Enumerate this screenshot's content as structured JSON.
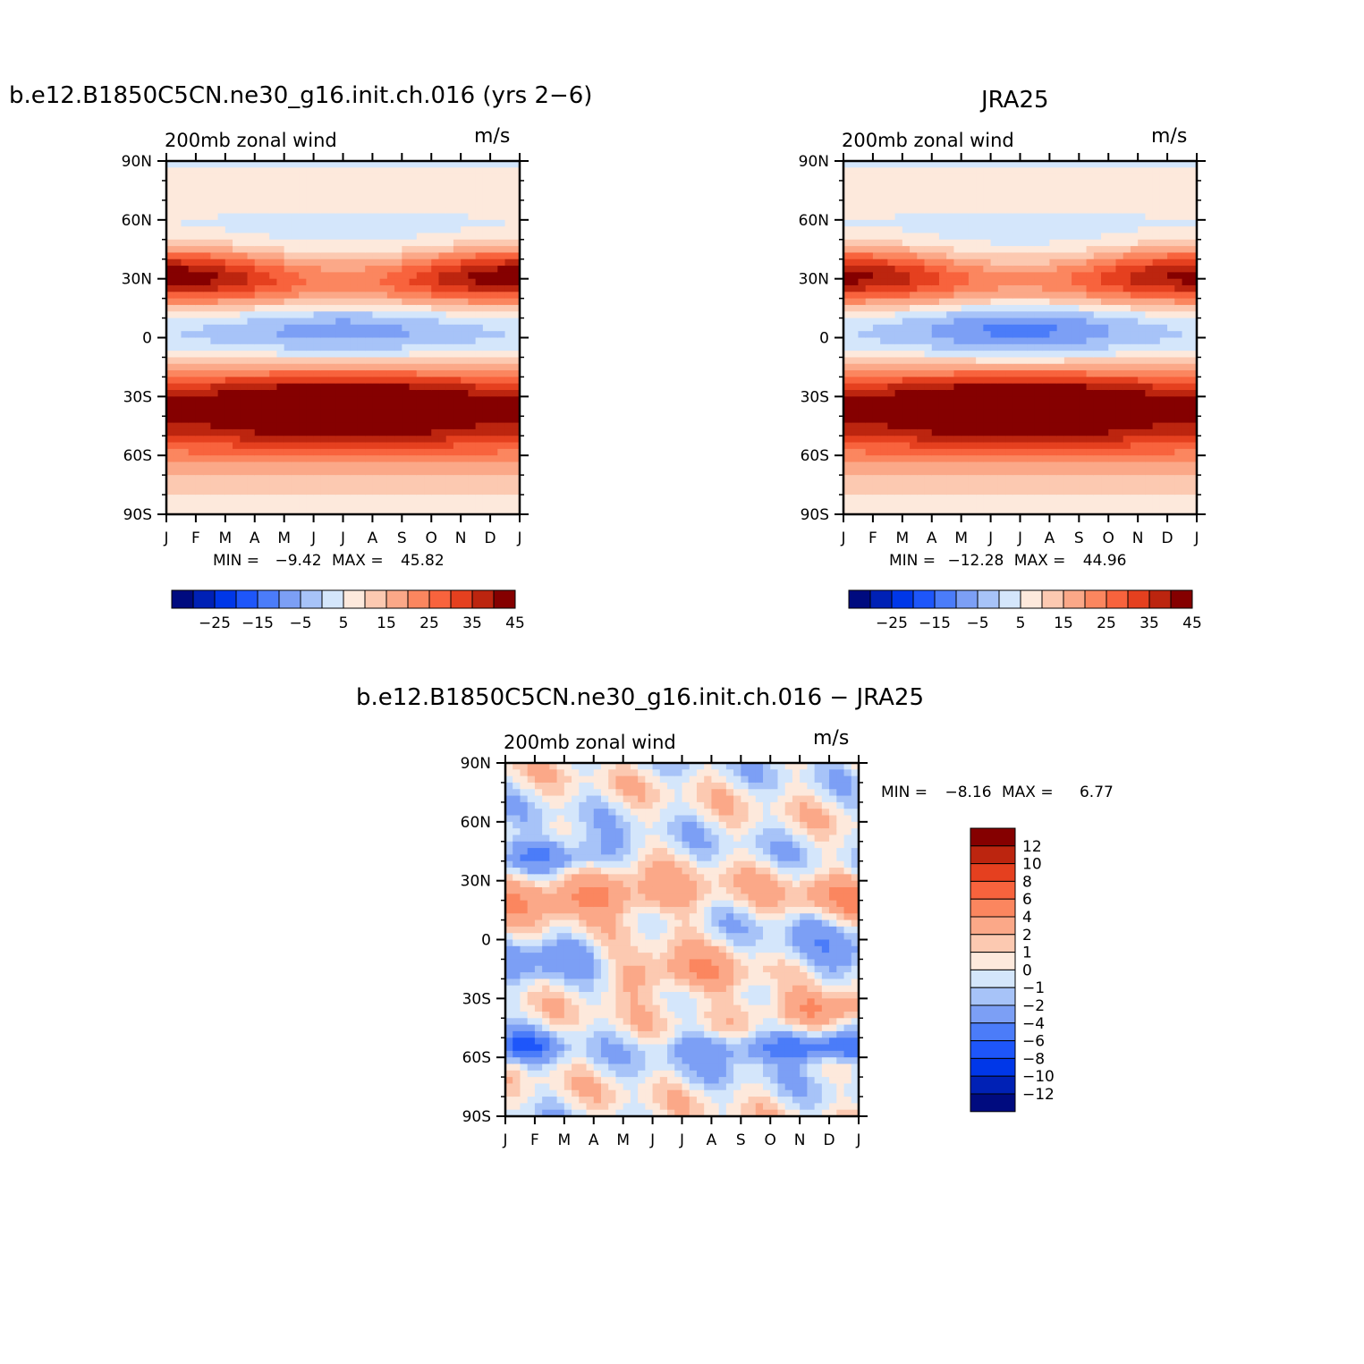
{
  "colors": {
    "seq_palette": [
      "#000b7f",
      "#0021b5",
      "#0037e8",
      "#1e56fa",
      "#4b7cf9",
      "#7c9ff5",
      "#a7c3f8",
      "#d4e6fb",
      "#fde9dc",
      "#fcc9b1",
      "#fba888",
      "#fb865f",
      "#f8633d",
      "#e5401f",
      "#bc250f",
      "#850000"
    ],
    "diff_palette": [
      "#000b7f",
      "#0021b5",
      "#0037e8",
      "#1e56fa",
      "#4b7cf9",
      "#7c9ff5",
      "#a7c3f8",
      "#d4e6fb",
      "#fde9dc",
      "#fcc9b1",
      "#fba888",
      "#fb865f",
      "#f8633d",
      "#e5401f",
      "#bc250f",
      "#850000"
    ]
  },
  "panels": {
    "model": {
      "title": "b.e12.B1850C5CN.ne30_g16.init.ch.016 (yrs 2−6)",
      "subtitle": "200mb  zonal  wind",
      "units": "m/s",
      "min_label": "MIN =",
      "min_value": "−9.42",
      "max_label": "MAX =",
      "max_value": "45.82"
    },
    "obs": {
      "title": "JRA25",
      "subtitle": "200mb  zonal  wind",
      "units": "m/s",
      "min_label": "MIN =",
      "min_value": "−12.28",
      "max_label": "MAX =",
      "max_value": "44.96"
    },
    "diff": {
      "title": "b.e12.B1850C5CN.ne30_g16.init.ch.016 − JRA25",
      "subtitle": "200mb  zonal  wind",
      "units": "m/s",
      "min_label": "MIN =",
      "min_value": "−8.16",
      "max_label": "MAX =",
      "max_value": "6.77"
    }
  },
  "chart_data": [
    {
      "type": "heatmap",
      "title": "b.e12.B1850C5CN.ne30_g16.init.ch.016 (yrs 2−6)",
      "field": "200mb zonal wind",
      "units": "m/s",
      "x_tick_labels": [
        "J",
        "F",
        "M",
        "A",
        "M",
        "J",
        "J",
        "A",
        "S",
        "O",
        "N",
        "D",
        "J"
      ],
      "y_tick_labels": [
        "90N",
        "60N",
        "30N",
        "0",
        "30S",
        "60S",
        "90S"
      ],
      "y_range": [
        -90,
        90
      ],
      "contour_levels": [
        -30,
        -25,
        -20,
        -15,
        -10,
        -5,
        0,
        5,
        10,
        15,
        20,
        25,
        30,
        35,
        40
      ],
      "colorbar_labels": [
        "−25",
        "−15",
        "−5",
        "5",
        "15",
        "25",
        "35",
        "45"
      ],
      "min": -9.42,
      "max": 45.82,
      "features": {
        "nh_jet": {
          "lat": 28,
          "min_speed": 22,
          "max_speed": 45,
          "peak_month": "Feb",
          "min_month": "Aug"
        },
        "sh_jet": {
          "lat": -30,
          "min_speed": 28,
          "max_speed": 45,
          "peak_month": "Jul"
        },
        "tropical_easterly_core": {
          "lat": 5,
          "value": -8,
          "month": "Jul"
        }
      }
    },
    {
      "type": "heatmap",
      "title": "JRA25",
      "field": "200mb zonal wind",
      "units": "m/s",
      "x_tick_labels": [
        "J",
        "F",
        "M",
        "A",
        "M",
        "J",
        "J",
        "A",
        "S",
        "O",
        "N",
        "D",
        "J"
      ],
      "y_tick_labels": [
        "90N",
        "60N",
        "30N",
        "0",
        "30S",
        "60S",
        "90S"
      ],
      "y_range": [
        -90,
        90
      ],
      "contour_levels": [
        -30,
        -25,
        -20,
        -15,
        -10,
        -5,
        0,
        5,
        10,
        15,
        20,
        25,
        30,
        35,
        40
      ],
      "colorbar_labels": [
        "−25",
        "−15",
        "−5",
        "5",
        "15",
        "25",
        "35",
        "45"
      ],
      "min": -12.28,
      "max": 44.96,
      "features": {
        "nh_jet": {
          "lat": 30,
          "min_speed": 20,
          "max_speed": 42,
          "peak_month": "Jan",
          "min_month": "Aug"
        },
        "sh_jet": {
          "lat": -30,
          "min_speed": 28,
          "max_speed": 42,
          "peak_month": "Jul"
        },
        "tropical_easterly_core": {
          "lat": 5,
          "value": -12,
          "month": "Jul"
        }
      }
    },
    {
      "type": "heatmap",
      "title": "b.e12.B1850C5CN.ne30_g16.init.ch.016 − JRA25",
      "field": "200mb zonal wind",
      "units": "m/s",
      "x_tick_labels": [
        "J",
        "F",
        "M",
        "A",
        "M",
        "J",
        "J",
        "A",
        "S",
        "O",
        "N",
        "D",
        "J"
      ],
      "y_tick_labels": [
        "90N",
        "60N",
        "30N",
        "0",
        "30S",
        "60S",
        "90S"
      ],
      "y_range": [
        -90,
        90
      ],
      "contour_levels": [
        -12,
        -10,
        -8,
        -6,
        -4,
        -2,
        -1,
        0,
        1,
        2,
        4,
        6,
        8,
        10,
        12
      ],
      "colorbar_labels": [
        "12",
        "10",
        "8",
        "6",
        "4",
        "2",
        "1",
        "0",
        "−1",
        "−2",
        "−4",
        "−6",
        "−8",
        "−10",
        "−12"
      ],
      "min": -8.16,
      "max": 6.77
    }
  ]
}
